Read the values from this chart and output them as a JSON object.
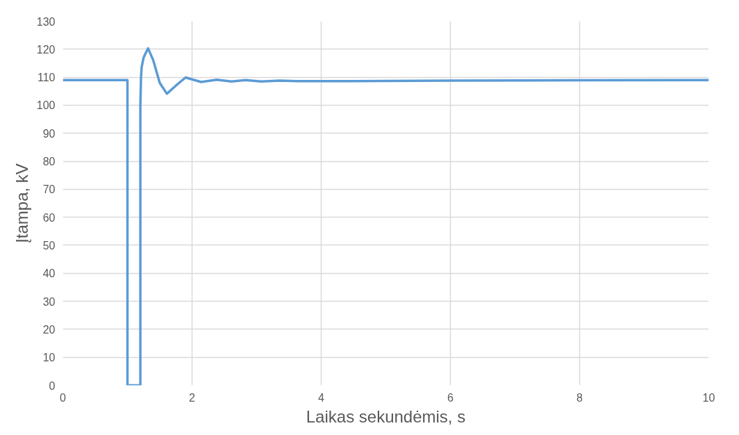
{
  "chart_data": {
    "type": "line",
    "xlabel": "Laikas sekundėmis, s",
    "ylabel": "Įtampa, kV",
    "x": [
      0,
      1.0,
      1.0,
      1.2,
      1.2,
      1.21,
      1.22,
      1.25,
      1.28,
      1.32,
      1.4,
      1.5,
      1.61,
      1.75,
      1.9,
      2.14,
      2.38,
      2.61,
      2.83,
      3.07,
      3.36,
      3.62,
      3.95,
      4.31,
      6,
      8,
      10
    ],
    "series": [
      {
        "color": "#5b9bd5",
        "values": [
          109.0,
          109.0,
          0,
          0,
          100,
          110,
          113.6,
          117,
          118.5,
          120.3,
          116,
          108,
          104.1,
          107,
          109.9,
          108.3,
          109.1,
          108.5,
          109.0,
          108.5,
          108.8,
          108.6,
          108.6,
          108.6,
          108.8,
          108.9,
          109.0
        ]
      }
    ],
    "xlim": [
      0,
      10
    ],
    "xticks": [
      0,
      2,
      4,
      6,
      8,
      10
    ],
    "ylim": [
      0,
      130
    ],
    "yticks": [
      0,
      10,
      20,
      30,
      40,
      50,
      60,
      70,
      80,
      90,
      100,
      110,
      120,
      130
    ],
    "grid": true,
    "line_style": "solid",
    "marker": "none"
  }
}
